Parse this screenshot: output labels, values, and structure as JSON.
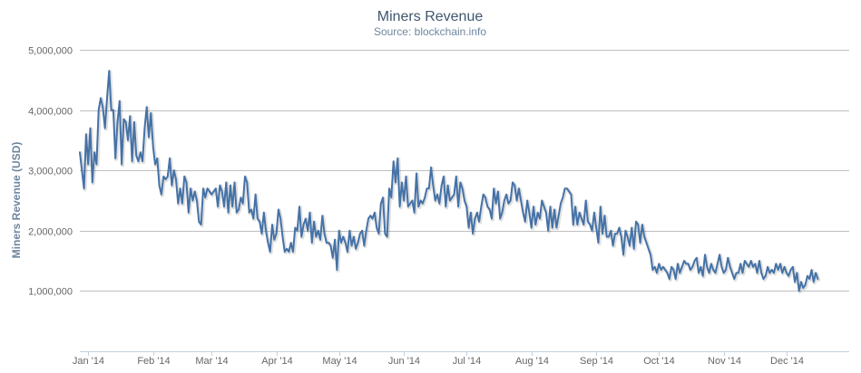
{
  "chart_data": {
    "type": "line",
    "title": "Miners Revenue",
    "subtitle": "Source: blockchain.info",
    "xlabel": "",
    "ylabel": "Miners Revenue (USD)",
    "ylim": [
      0,
      5000000
    ],
    "y_ticks": [
      "1,000,000",
      "2,000,000",
      "3,000,000",
      "4,000,000",
      "5,000,000"
    ],
    "y_tick_values": [
      1000000,
      2000000,
      3000000,
      4000000,
      5000000
    ],
    "x_tick_labels": [
      "Jan '14",
      "Feb '14",
      "Mar '14",
      "Apr '14",
      "May '14",
      "Jun '14",
      "Jul '14",
      "Aug '14",
      "Sep '14",
      "Oct '14",
      "Nov '14",
      "Dec '14"
    ],
    "x_tick_days": [
      0,
      31,
      59,
      90,
      120,
      151,
      181,
      212,
      243,
      273,
      304,
      334
    ],
    "series": [
      {
        "name": "Miners Revenue",
        "color": "#4572a7",
        "x_start_day": -4,
        "x_step_days": 1,
        "values": [
          3300000,
          3000000,
          2700000,
          3600000,
          3100000,
          3700000,
          2800000,
          3300000,
          3100000,
          4000000,
          4200000,
          4050000,
          3700000,
          4200000,
          4650000,
          4000000,
          4000000,
          3200000,
          3800000,
          4150000,
          3100000,
          3850000,
          3800000,
          3500000,
          3900000,
          3150000,
          3800000,
          3250000,
          3150000,
          3300000,
          3150000,
          3700000,
          4050000,
          3550000,
          3950000,
          3400000,
          3100000,
          3200000,
          2750000,
          2600000,
          2900000,
          2850000,
          2900000,
          3200000,
          2750000,
          3000000,
          2850000,
          2450000,
          2700000,
          2450000,
          2900000,
          2800000,
          2300000,
          2700000,
          2500000,
          2650000,
          2500000,
          2150000,
          2100000,
          2700000,
          2550000,
          2700000,
          2650000,
          2600000,
          2650000,
          2700000,
          2400000,
          2750000,
          2650000,
          2400000,
          2800000,
          2300000,
          2750000,
          2400000,
          2800000,
          2300000,
          2350000,
          2550000,
          2450000,
          2900000,
          2800000,
          2300000,
          2350000,
          2200000,
          2600000,
          2200000,
          2150000,
          1950000,
          2300000,
          2000000,
          1800000,
          1650000,
          2100000,
          1850000,
          1950000,
          2350000,
          2200000,
          1900000,
          1650000,
          1700000,
          1650000,
          1800000,
          1650000,
          2050000,
          2000000,
          2400000,
          1900000,
          2100000,
          2200000,
          2000000,
          2300000,
          1800000,
          2150000,
          1900000,
          2000000,
          1850000,
          2250000,
          1950000,
          1800000,
          1800000,
          1750000,
          1550000,
          1850000,
          1350000,
          2000000,
          1800000,
          1900000,
          1800000,
          1650000,
          2000000,
          1750000,
          1900000,
          1700000,
          1800000,
          1950000,
          2000000,
          1750000,
          2000000,
          2200000,
          2250000,
          2200000,
          2300000,
          2050000,
          1950000,
          2450000,
          2550000,
          1950000,
          1900000,
          2700000,
          2550000,
          3150000,
          2800000,
          3200000,
          2400000,
          2800000,
          2500000,
          2900000,
          2400000,
          2450000,
          2500000,
          2300000,
          2950000,
          2400000,
          2500000,
          2450000,
          2550000,
          2700000,
          2700000,
          3050000,
          2750000,
          2500000,
          2600000,
          2450000,
          2750000,
          2900000,
          2400000,
          2750000,
          2500000,
          2550000,
          2600000,
          2900000,
          2400000,
          2800000,
          2700000,
          2500000,
          2400000,
          2050000,
          2300000,
          1950000,
          2200000,
          2300000,
          2150000,
          2400000,
          2600000,
          2550000,
          2400000,
          2350000,
          2200000,
          2700000,
          2450000,
          2650000,
          2200000,
          2300000,
          2500000,
          2600000,
          2450000,
          2500000,
          2800000,
          2750000,
          2500000,
          2700000,
          2500000,
          2300000,
          2150000,
          2500000,
          2300000,
          2050000,
          2400000,
          2100000,
          2300000,
          2200000,
          2500000,
          2400000,
          2300000,
          2000000,
          2400000,
          2050000,
          2350000,
          2050000,
          2250000,
          2450000,
          2550000,
          2700000,
          2700000,
          2650000,
          2600000,
          2100000,
          2400000,
          2100000,
          2300000,
          2200000,
          2100000,
          2500000,
          2150000,
          2100000,
          2000000,
          2300000,
          2050000,
          1800000,
          2400000,
          1950000,
          2250000,
          1900000,
          1900000,
          2000000,
          1750000,
          1950000,
          1950000,
          2050000,
          1900000,
          1600000,
          2000000,
          1900000,
          1750000,
          2050000,
          1700000,
          2150000,
          2100000,
          1800000,
          2100000,
          1900000,
          1800000,
          1700000,
          1600000,
          1350000,
          1400000,
          1300000,
          1450000,
          1350000,
          1400000,
          1350000,
          1300000,
          1200000,
          1400000,
          1350000,
          1200000,
          1450000,
          1300000,
          1400000,
          1500000,
          1450000,
          1450000,
          1350000,
          1400000,
          1500000,
          1550000,
          1300000,
          1400000,
          1250000,
          1600000,
          1400000,
          1300000,
          1450000,
          1350000,
          1300000,
          1450000,
          1600000,
          1400000,
          1300000,
          1350000,
          1550000,
          1400000,
          1300000,
          1200000,
          1300000,
          1300000,
          1450000,
          1300000,
          1500000,
          1450000,
          1400000,
          1500000,
          1400000,
          1450000,
          1300000,
          1500000,
          1300000,
          1200000,
          1250000,
          1400000,
          1300000,
          1350000,
          1300000,
          1450000,
          1350000,
          1450000,
          1300000,
          1400000,
          1300000,
          1250000,
          1350000,
          1400000,
          1150000,
          1300000,
          1000000,
          1150000,
          1050000,
          1100000,
          1250000,
          1200000,
          1350000,
          1150000,
          1300000,
          1200000
        ]
      }
    ]
  }
}
